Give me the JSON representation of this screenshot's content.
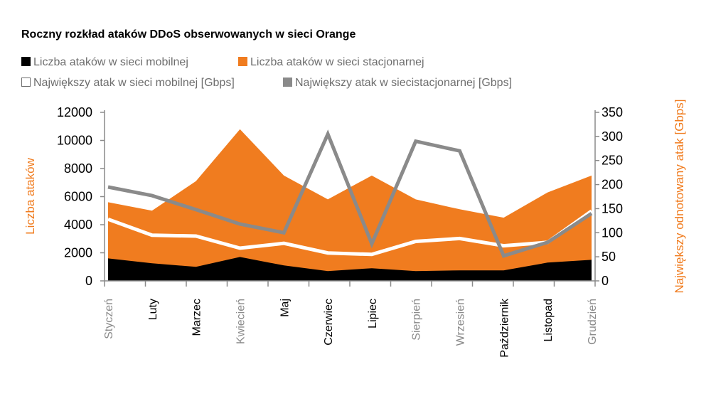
{
  "chart_data": {
    "type": "area",
    "title": "Roczny rozkład ataków DDoS obserwowanych w sieci Orange",
    "categories": [
      "Styczeń",
      "Luty",
      "Marzec",
      "Kwiecień",
      "Maj",
      "Czerwiec",
      "Lipiec",
      "Sierpień",
      "Wrzesień",
      "Październik",
      "Listopad",
      "Grudzień"
    ],
    "category_colors": [
      "#8a8a8a",
      "#000000",
      "#000000",
      "#8a8a8a",
      "#000000",
      "#000000",
      "#000000",
      "#8a8a8a",
      "#8a8a8a",
      "#000000",
      "#000000",
      "#8a8a8a"
    ],
    "ylabel_left": "Liczba ataków",
    "ylabel_right": "Największy odnotowany atak [Gbps]",
    "ylim_left": [
      0,
      12000
    ],
    "ylim_right": [
      0,
      350
    ],
    "yticks_left": [
      "0",
      "2000",
      "4000",
      "6000",
      "8000",
      "10000",
      "12000"
    ],
    "yticks_right": [
      "0",
      "50",
      "100",
      "150",
      "200",
      "250",
      "300",
      "350"
    ],
    "series": [
      {
        "name": "Liczba ataków w sieci mobilnej",
        "kind": "area",
        "axis": "left",
        "color": "#000000",
        "values": [
          1600,
          1250,
          1000,
          1700,
          1100,
          700,
          900,
          700,
          750,
          750,
          1300,
          1500
        ]
      },
      {
        "name": "Liczba ataków w sieci stacjonarnej",
        "kind": "area",
        "axis": "left",
        "color": "#f07c1f",
        "values": [
          5600,
          5000,
          7100,
          10800,
          7500,
          5800,
          7500,
          5800,
          5100,
          4500,
          6300,
          7500
        ]
      },
      {
        "name": "Największy atak w sieci mobilnej [Gbps]",
        "kind": "line",
        "axis": "right",
        "color": "#ffffff",
        "values": [
          128,
          95,
          93,
          68,
          78,
          58,
          55,
          82,
          88,
          73,
          80,
          145
        ]
      },
      {
        "name": "Największy atak w siecistacjonarnej [Gbps]",
        "kind": "line",
        "axis": "right",
        "color": "#8a8a8a",
        "values": [
          195,
          177,
          148,
          118,
          100,
          305,
          77,
          290,
          270,
          52,
          80,
          140
        ]
      }
    ],
    "legend": [
      {
        "label": "Liczba ataków w sieci mobilnej",
        "swatch": "solid",
        "color": "#000000"
      },
      {
        "label": "Liczba ataków w sieci stacjonarnej",
        "swatch": "solid",
        "color": "#f07c1f"
      },
      {
        "label": "Największy atak w sieci mobilnej [Gbps]",
        "swatch": "outline",
        "color": "#6e6e6e"
      },
      {
        "label": "Największy atak w siecistacjonarnej [Gbps]",
        "swatch": "solid",
        "color": "#8a8a8a"
      }
    ],
    "colors": {
      "axis": "#8a8a8a",
      "left_label": "#f07c1f",
      "right_label": "#f07c1f"
    }
  }
}
